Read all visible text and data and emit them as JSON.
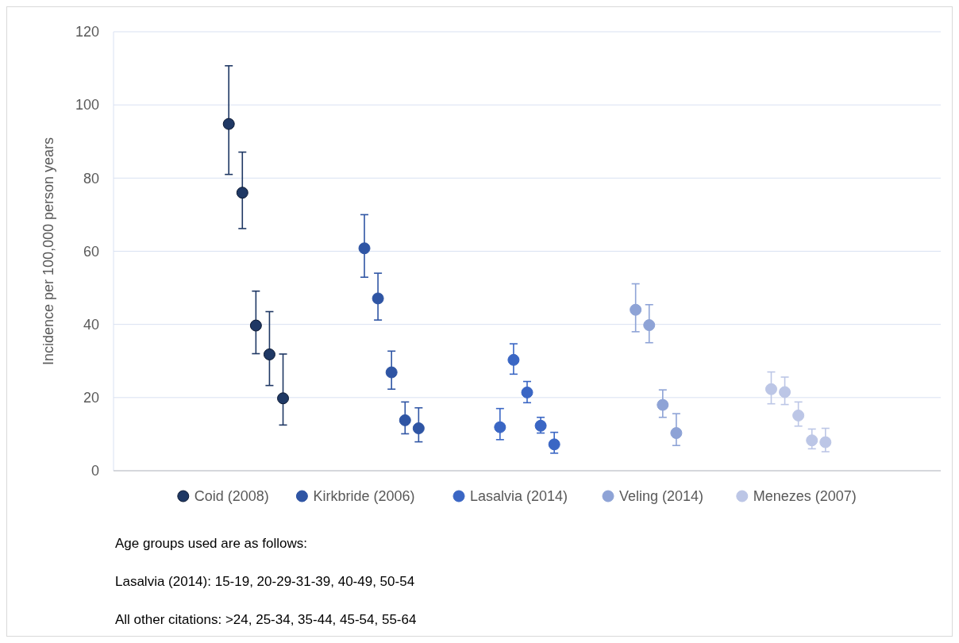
{
  "chart_data": {
    "type": "scatter",
    "ylabel": "Incidence per 100,000 person years",
    "categories": [
      null,
      null,
      null,
      null,
      null,
      null,
      null,
      null,
      null,
      null,
      null,
      null,
      null,
      null,
      null,
      null,
      null,
      null,
      null,
      null,
      null,
      null,
      null,
      null,
      null,
      null,
      null,
      null,
      null,
      null,
      null,
      null,
      null,
      null,
      null,
      null,
      null,
      null,
      null,
      null,
      null,
      null,
      null,
      null,
      null,
      null,
      null,
      null,
      null,
      null,
      null,
      null,
      null,
      null,
      null,
      null,
      null,
      null,
      null,
      null,
      null
    ],
    "ylim": [
      0,
      120
    ],
    "yticks": [
      0,
      20,
      40,
      60,
      80,
      100,
      120
    ],
    "grid": "y",
    "legend": "bottom",
    "marker": "circle",
    "series": [
      {
        "name": "Coid (2008)",
        "color": "#1f3864",
        "values": [
          null,
          null,
          null,
          null,
          null,
          null,
          null,
          null,
          94.8,
          76,
          39.7,
          31.8,
          19.8,
          null,
          null,
          null,
          null,
          null,
          null,
          null,
          null,
          null,
          null,
          null,
          null,
          null,
          null,
          null,
          null,
          null,
          null,
          null,
          null,
          null,
          null,
          null,
          null,
          null,
          null,
          null,
          null,
          null,
          null,
          null,
          null,
          null,
          null,
          null,
          null,
          null,
          null,
          null,
          null,
          null,
          null,
          null,
          null,
          null,
          null,
          null,
          null
        ],
        "errors": [
          null,
          null,
          null,
          null,
          null,
          null,
          null,
          null,
          [
            81,
            110.7
          ],
          [
            66.2,
            87.1
          ],
          [
            32,
            49.1
          ],
          [
            23.3,
            43.5
          ],
          [
            12.5,
            31.9
          ],
          null,
          null,
          null,
          null,
          null,
          null,
          null,
          null,
          null,
          null,
          null,
          null,
          null,
          null,
          null,
          null,
          null,
          null,
          null,
          null,
          null,
          null,
          null,
          null,
          null,
          null,
          null,
          null,
          null,
          null,
          null,
          null,
          null,
          null,
          null,
          null,
          null,
          null,
          null,
          null,
          null,
          null,
          null,
          null,
          null,
          null,
          null,
          null
        ]
      },
      {
        "name": "Kirkbride (2006)",
        "color": "#2f55a4",
        "values": [
          null,
          null,
          null,
          null,
          null,
          null,
          null,
          null,
          null,
          null,
          null,
          null,
          null,
          null,
          null,
          null,
          null,
          null,
          60.8,
          47.1,
          26.9,
          13.8,
          11.6,
          null,
          null,
          null,
          null,
          null,
          null,
          null,
          null,
          null,
          null,
          null,
          null,
          null,
          null,
          null,
          null,
          null,
          null,
          null,
          null,
          null,
          null,
          null,
          null,
          null,
          null,
          null,
          null,
          null,
          null,
          null,
          null,
          null,
          null,
          null,
          null,
          null,
          null
        ],
        "errors": [
          null,
          null,
          null,
          null,
          null,
          null,
          null,
          null,
          null,
          null,
          null,
          null,
          null,
          null,
          null,
          null,
          null,
          null,
          [
            52.9,
            70
          ],
          [
            41.2,
            54
          ],
          [
            22.3,
            32.7
          ],
          [
            10.1,
            18.8
          ],
          [
            7.9,
            17.2
          ],
          null,
          null,
          null,
          null,
          null,
          null,
          null,
          null,
          null,
          null,
          null,
          null,
          null,
          null,
          null,
          null,
          null,
          null,
          null,
          null,
          null,
          null,
          null,
          null,
          null,
          null,
          null,
          null,
          null,
          null,
          null,
          null,
          null,
          null,
          null,
          null,
          null,
          null
        ]
      },
      {
        "name": "Lasalvia (2014)",
        "color": "#3a66c4",
        "values": [
          null,
          null,
          null,
          null,
          null,
          null,
          null,
          null,
          null,
          null,
          null,
          null,
          null,
          null,
          null,
          null,
          null,
          null,
          null,
          null,
          null,
          null,
          null,
          null,
          null,
          null,
          null,
          null,
          11.9,
          30.3,
          21.4,
          12.3,
          7.2,
          null,
          null,
          null,
          null,
          null,
          null,
          null,
          null,
          null,
          null,
          null,
          null,
          null,
          null,
          null,
          null,
          null,
          null,
          null,
          null,
          null,
          null,
          null,
          null,
          null,
          null,
          null,
          null
        ],
        "errors": [
          null,
          null,
          null,
          null,
          null,
          null,
          null,
          null,
          null,
          null,
          null,
          null,
          null,
          null,
          null,
          null,
          null,
          null,
          null,
          null,
          null,
          null,
          null,
          null,
          null,
          null,
          null,
          null,
          [
            8.5,
            17
          ],
          [
            26.4,
            34.7
          ],
          [
            18.6,
            24.4
          ],
          [
            10.3,
            14.6
          ],
          [
            4.8,
            10.5
          ],
          null,
          null,
          null,
          null,
          null,
          null,
          null,
          null,
          null,
          null,
          null,
          null,
          null,
          null,
          null,
          null,
          null,
          null,
          null,
          null,
          null,
          null,
          null,
          null,
          null,
          null,
          null,
          null
        ]
      },
      {
        "name": "Veling (2014)",
        "color": "#8ea3d6",
        "values": [
          null,
          null,
          null,
          null,
          null,
          null,
          null,
          null,
          null,
          null,
          null,
          null,
          null,
          null,
          null,
          null,
          null,
          null,
          null,
          null,
          null,
          null,
          null,
          null,
          null,
          null,
          null,
          null,
          null,
          null,
          null,
          null,
          null,
          null,
          null,
          null,
          null,
          null,
          44,
          39.8,
          18,
          10.3,
          null,
          null,
          null,
          null,
          null,
          null,
          null,
          null,
          null,
          null,
          null,
          null,
          null,
          null,
          null,
          null,
          null,
          null,
          null
        ],
        "errors": [
          null,
          null,
          null,
          null,
          null,
          null,
          null,
          null,
          null,
          null,
          null,
          null,
          null,
          null,
          null,
          null,
          null,
          null,
          null,
          null,
          null,
          null,
          null,
          null,
          null,
          null,
          null,
          null,
          null,
          null,
          null,
          null,
          null,
          null,
          null,
          null,
          null,
          null,
          [
            38,
            51.1
          ],
          [
            35,
            45.4
          ],
          [
            14.6,
            22.1
          ],
          [
            6.9,
            15.6
          ],
          null,
          null,
          null,
          null,
          null,
          null,
          null,
          null,
          null,
          null,
          null,
          null,
          null,
          null,
          null,
          null,
          null,
          null,
          null
        ]
      },
      {
        "name": "Menezes (2007)",
        "color": "#bcc6e6",
        "values": [
          null,
          null,
          null,
          null,
          null,
          null,
          null,
          null,
          null,
          null,
          null,
          null,
          null,
          null,
          null,
          null,
          null,
          null,
          null,
          null,
          null,
          null,
          null,
          null,
          null,
          null,
          null,
          null,
          null,
          null,
          null,
          null,
          null,
          null,
          null,
          null,
          null,
          null,
          null,
          null,
          null,
          null,
          null,
          null,
          null,
          null,
          null,
          null,
          22.3,
          21.5,
          15.1,
          8.3,
          7.8,
          null,
          null,
          null,
          null,
          null,
          null,
          null,
          null
        ],
        "errors": [
          null,
          null,
          null,
          null,
          null,
          null,
          null,
          null,
          null,
          null,
          null,
          null,
          null,
          null,
          null,
          null,
          null,
          null,
          null,
          null,
          null,
          null,
          null,
          null,
          null,
          null,
          null,
          null,
          null,
          null,
          null,
          null,
          null,
          null,
          null,
          null,
          null,
          null,
          null,
          null,
          null,
          null,
          null,
          null,
          null,
          null,
          null,
          null,
          [
            18.3,
            27
          ],
          [
            18.1,
            25.6
          ],
          [
            12.2,
            18.8
          ],
          [
            6,
            11.4
          ],
          [
            5.2,
            11.6
          ],
          null,
          null,
          null,
          null,
          null,
          null,
          null,
          null
        ]
      }
    ],
    "annotations": [
      "Age groups used are as follows:",
      "Lasalvia (2014): 15-19, 20-29-31-39, 40-49, 50-54",
      "All other citations: >24, 25-34, 35-44, 45-54, 55-64"
    ]
  }
}
